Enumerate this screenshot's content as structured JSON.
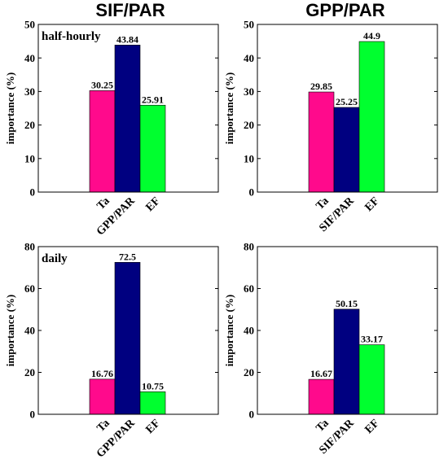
{
  "colors": [
    "#ff0a8c",
    "#000080",
    "#00ff2f"
  ],
  "chart_data": [
    {
      "type": "bar",
      "title": "SIF/PAR",
      "annotation": "half-hourly",
      "ylabel": "importance (%)",
      "ylim": [
        0,
        50
      ],
      "yticks": [
        0,
        10,
        20,
        30,
        40,
        50
      ],
      "categories": [
        "Ta",
        "GPP/PAR",
        "EF"
      ],
      "values": [
        30.25,
        43.84,
        25.91
      ],
      "value_labels": [
        "30.25",
        "43.84",
        "25.91"
      ]
    },
    {
      "type": "bar",
      "title": "GPP/PAR",
      "annotation": "",
      "ylabel": "importance (%)",
      "ylim": [
        0,
        50
      ],
      "yticks": [
        0,
        10,
        20,
        30,
        40,
        50
      ],
      "categories": [
        "Ta",
        "SIF/PAR",
        "EF"
      ],
      "values": [
        29.85,
        25.25,
        44.9
      ],
      "value_labels": [
        "29.85",
        "25.25",
        "44.9"
      ]
    },
    {
      "type": "bar",
      "title": "",
      "annotation": "daily",
      "ylabel": "importance (%)",
      "ylim": [
        0,
        80
      ],
      "yticks": [
        0,
        20,
        40,
        60,
        80
      ],
      "categories": [
        "Ta",
        "GPP/PAR",
        "EF"
      ],
      "values": [
        16.76,
        72.5,
        10.75
      ],
      "value_labels": [
        "16.76",
        "72.5",
        "10.75"
      ]
    },
    {
      "type": "bar",
      "title": "",
      "annotation": "",
      "ylabel": "importance (%)",
      "ylim": [
        0,
        80
      ],
      "yticks": [
        0,
        20,
        40,
        60,
        80
      ],
      "categories": [
        "Ta",
        "SIF/PAR",
        "EF"
      ],
      "values": [
        16.67,
        50.15,
        33.17
      ],
      "value_labels": [
        "16.67",
        "50.15",
        "33.17"
      ]
    }
  ]
}
